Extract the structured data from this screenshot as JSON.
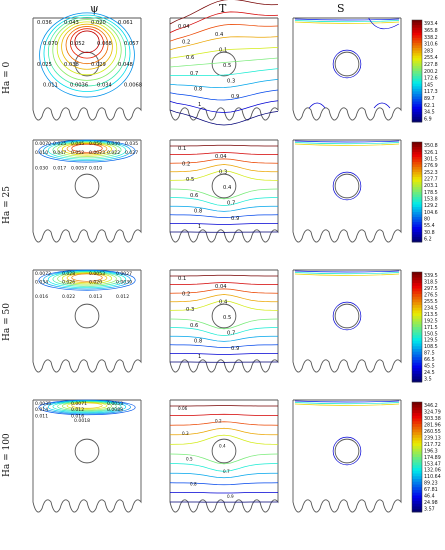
{
  "headers": {
    "psi": "ψ",
    "T": "T",
    "S": "S"
  },
  "rows": [
    {
      "label": "Ha = 0",
      "psi_labels": [
        "0.036",
        "0.043",
        "0.020",
        "0.061",
        "0.070",
        "0.052",
        "0.068",
        "0.057",
        "0.025",
        "0.038",
        "0.029",
        "0.048",
        "0.011",
        "0.0036",
        "0.034",
        "0.0068"
      ],
      "T_labels": [
        "0.04",
        "0.4",
        "0.2",
        "0.1",
        "0.6",
        "0.5",
        "0.7",
        "0.3",
        "0.8",
        "0.9",
        "1"
      ],
      "colorbar": [
        "393.4",
        "365.8",
        "338.2",
        "310.6",
        "283",
        "255.4",
        "227.8",
        "200.2",
        "172.6",
        "145",
        "117.3",
        "89.7",
        "62.1",
        "34.5",
        "6.9"
      ]
    },
    {
      "label": "Ha = 25",
      "psi_labels": [
        "0.0070",
        "0.025",
        "0.045",
        "0.056",
        "0.040",
        "0.035",
        "0.010",
        "0.047",
        "0.052",
        "0.0023",
        "0.022",
        "0.027",
        "0.030",
        "0.017",
        "0.0057",
        "0.010"
      ],
      "T_labels": [
        "0.1",
        "0.04",
        "0.2",
        "0.3",
        "0.5",
        "0.4",
        "0.6",
        "0.7",
        "0.8",
        "0.9",
        "1"
      ],
      "colorbar": [
        "350.8",
        "326.1",
        "301.5",
        "276.9",
        "252.3",
        "227.7",
        "203.1",
        "178.5",
        "153.8",
        "129.2",
        "104.6",
        "80",
        "55.4",
        "30.8",
        "6.2"
      ]
    },
    {
      "label": "Ha = 50",
      "psi_labels": [
        "0.0072",
        "0.028",
        "0.0053",
        "0.0027",
        "0.034",
        "0.026",
        "0.020",
        "0.0039",
        "0.016",
        "0.022",
        "0.013",
        "0.012"
      ],
      "T_labels": [
        "0.1",
        "0.04",
        "0.2",
        "0.4",
        "0.3",
        "0.5",
        "0.6",
        "0.7",
        "0.8",
        "0.9",
        "1"
      ],
      "colorbar": [
        "339.5",
        "318.5",
        "297.5",
        "276.5",
        "255.5",
        "234.5",
        "213.5",
        "192.5",
        "171.5",
        "150.5",
        "129.5",
        "108.5",
        "87.5",
        "66.5",
        "45.5",
        "24.5",
        "3.5"
      ]
    },
    {
      "label": "Ha = 100",
      "psi_labels": [
        "0.0035",
        "0.0071",
        "0.0053",
        "0.014",
        "0.012",
        "0.0088",
        "0.011",
        "0.016",
        "0.0018"
      ],
      "T_labels": [
        "0.06",
        "0.2",
        "0.3",
        "0.4",
        "0.5",
        "0.7",
        "0.8",
        "0.9"
      ],
      "colorbar": [
        "346.2",
        "324.79",
        "303.38",
        "281.96",
        "260.55",
        "239.13",
        "217.72",
        "196.3",
        "174.89",
        "153.47",
        "132.06",
        "110.64",
        "89.23",
        "67.81",
        "46.4",
        "24.98",
        "3.57"
      ]
    }
  ],
  "colors": {
    "line": "#2b3a8c",
    "axes": "#555555",
    "high": "#c0181b",
    "low": "#1f2b8c"
  }
}
